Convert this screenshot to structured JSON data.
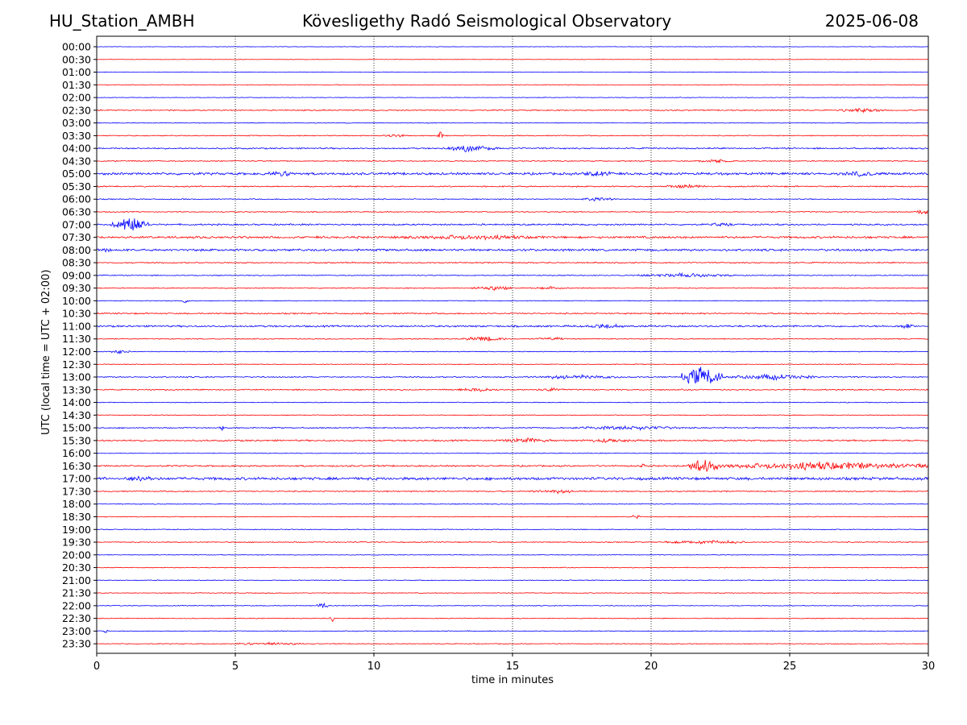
{
  "header": {
    "station": "HU_Station_AMBH",
    "observatory": "Kövesligethy Radó Seismological Observatory",
    "date": "2025-06-08"
  },
  "chart_data": {
    "type": "line",
    "title": "Kövesligethy Radó Seismological Observatory",
    "xlabel": "time in minutes",
    "ylabel": "UTC (local time = UTC + 02:00)",
    "xlim": [
      0,
      30
    ],
    "x_ticks": [
      0,
      5,
      10,
      15,
      20,
      25,
      30
    ],
    "grid": "vertical dotted lines at each 5-minute tick",
    "colors": {
      "even_hour_rows": "#0000ff",
      "half_hour_rows": "#ff0000"
    },
    "row_labels": [
      "00:00",
      "00:30",
      "01:00",
      "01:30",
      "02:00",
      "02:30",
      "03:00",
      "03:30",
      "04:00",
      "04:30",
      "05:00",
      "05:30",
      "06:00",
      "06:30",
      "07:00",
      "07:30",
      "08:00",
      "08:30",
      "09:00",
      "09:30",
      "10:00",
      "10:30",
      "11:00",
      "11:30",
      "12:00",
      "12:30",
      "13:00",
      "13:30",
      "14:00",
      "14:30",
      "15:00",
      "15:30",
      "16:00",
      "16:30",
      "17:00",
      "17:30",
      "18:00",
      "18:30",
      "19:00",
      "19:30",
      "20:00",
      "20:30",
      "21:00",
      "21:30",
      "22:00",
      "22:30",
      "23:00",
      "23:30"
    ],
    "row_noise": [
      0.25,
      0.25,
      0.3,
      0.35,
      0.3,
      0.6,
      0.35,
      0.5,
      0.7,
      0.55,
      1.2,
      0.65,
      0.5,
      0.5,
      0.8,
      1.1,
      1.1,
      0.6,
      0.5,
      0.5,
      0.4,
      0.7,
      0.9,
      0.5,
      0.4,
      0.4,
      0.6,
      0.6,
      0.4,
      0.4,
      0.6,
      0.8,
      0.4,
      0.8,
      1.4,
      0.6,
      0.4,
      0.4,
      0.4,
      0.5,
      0.3,
      0.4,
      0.4,
      0.4,
      0.4,
      0.4,
      0.4,
      0.4
    ],
    "events": [
      {
        "row": "02:30",
        "start": 26.8,
        "end": 28.5,
        "amp": 3
      },
      {
        "row": "03:30",
        "start": 10.3,
        "end": 11.2,
        "amp": 2.5
      },
      {
        "row": "03:30",
        "start": 12.3,
        "end": 12.5,
        "amp": 6
      },
      {
        "row": "04:00",
        "start": 12.5,
        "end": 14.5,
        "amp": 5
      },
      {
        "row": "04:30",
        "start": 21.5,
        "end": 23.0,
        "amp": 3
      },
      {
        "row": "05:00",
        "start": 6.0,
        "end": 7.5,
        "amp": 4
      },
      {
        "row": "05:00",
        "start": 17.3,
        "end": 18.7,
        "amp": 5
      },
      {
        "row": "05:00",
        "start": 26.8,
        "end": 28.2,
        "amp": 4
      },
      {
        "row": "05:30",
        "start": 20.5,
        "end": 22.0,
        "amp": 3
      },
      {
        "row": "06:00",
        "start": 17.5,
        "end": 18.8,
        "amp": 3
      },
      {
        "row": "06:30",
        "start": 29.6,
        "end": 30.0,
        "amp": 4
      },
      {
        "row": "07:00",
        "start": 0.5,
        "end": 1.9,
        "amp": 11
      },
      {
        "row": "07:00",
        "start": 22.0,
        "end": 23.0,
        "amp": 3
      },
      {
        "row": "07:30",
        "start": 10.5,
        "end": 16.5,
        "amp": 3.5
      },
      {
        "row": "08:00",
        "start": 0.0,
        "end": 0.6,
        "amp": 4
      },
      {
        "row": "09:00",
        "start": 19.5,
        "end": 23.0,
        "amp": 3
      },
      {
        "row": "09:30",
        "start": 13.5,
        "end": 15.0,
        "amp": 3.5
      },
      {
        "row": "09:30",
        "start": 15.8,
        "end": 17.0,
        "amp": 2.5
      },
      {
        "row": "10:00",
        "start": 3.1,
        "end": 3.3,
        "amp": 4
      },
      {
        "row": "11:00",
        "start": 17.8,
        "end": 19.0,
        "amp": 4
      },
      {
        "row": "11:00",
        "start": 28.9,
        "end": 29.5,
        "amp": 4
      },
      {
        "row": "11:30",
        "start": 13.2,
        "end": 14.8,
        "amp": 3.5
      },
      {
        "row": "11:30",
        "start": 15.8,
        "end": 17.0,
        "amp": 2.5
      },
      {
        "row": "12:00",
        "start": 0.5,
        "end": 1.2,
        "amp": 3
      },
      {
        "row": "13:00",
        "start": 15.5,
        "end": 19.0,
        "amp": 3
      },
      {
        "row": "13:00",
        "start": 21.1,
        "end": 22.6,
        "amp": 14
      },
      {
        "row": "13:00",
        "start": 22.6,
        "end": 26.0,
        "amp": 4
      },
      {
        "row": "13:30",
        "start": 13.0,
        "end": 14.5,
        "amp": 3
      },
      {
        "row": "13:30",
        "start": 15.8,
        "end": 17.0,
        "amp": 2.5
      },
      {
        "row": "15:00",
        "start": 4.4,
        "end": 4.6,
        "amp": 5
      },
      {
        "row": "15:00",
        "start": 17.0,
        "end": 21.5,
        "amp": 3
      },
      {
        "row": "15:30",
        "start": 14.5,
        "end": 16.5,
        "amp": 3.5
      },
      {
        "row": "15:30",
        "start": 17.5,
        "end": 19.5,
        "amp": 3
      },
      {
        "row": "16:30",
        "start": 19.6,
        "end": 19.8,
        "amp": 5
      },
      {
        "row": "16:30",
        "start": 21.3,
        "end": 22.5,
        "amp": 10
      },
      {
        "row": "16:30",
        "start": 22.5,
        "end": 30.0,
        "amp": 6
      },
      {
        "row": "17:00",
        "start": 1.0,
        "end": 2.0,
        "amp": 6
      },
      {
        "row": "17:30",
        "start": 15.5,
        "end": 17.5,
        "amp": 3
      },
      {
        "row": "18:30",
        "start": 19.3,
        "end": 19.6,
        "amp": 4
      },
      {
        "row": "19:30",
        "start": 20.5,
        "end": 23.5,
        "amp": 3
      },
      {
        "row": "22:00",
        "start": 7.9,
        "end": 8.4,
        "amp": 5
      },
      {
        "row": "22:30",
        "start": 8.4,
        "end": 8.6,
        "amp": 5
      },
      {
        "row": "23:00",
        "start": 0.2,
        "end": 0.4,
        "amp": 4
      },
      {
        "row": "23:30",
        "start": 5.0,
        "end": 7.5,
        "amp": 2.5
      }
    ]
  }
}
